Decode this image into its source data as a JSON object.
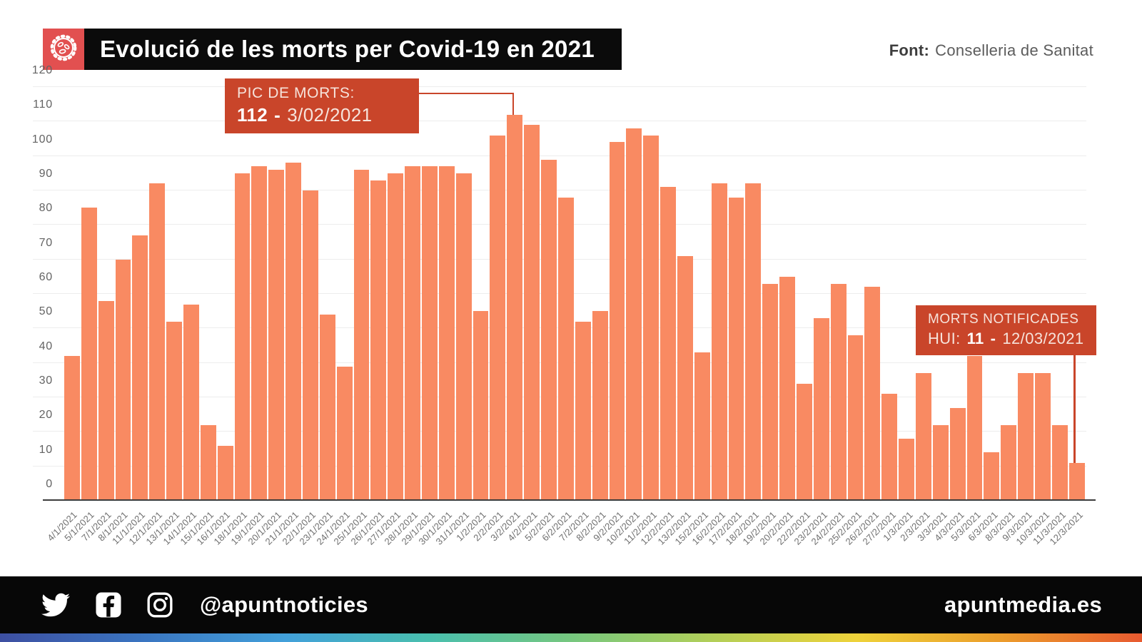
{
  "header": {
    "title": "Evolució de les morts per Covid-19 en 2021",
    "source_label": "Font:",
    "source_value": "Conselleria de Sanitat",
    "icon": "virus-icon"
  },
  "chart_data": {
    "type": "bar",
    "title": "Evolució de les morts per Covid-19 en 2021",
    "xlabel": "",
    "ylabel": "",
    "ylim": [
      0,
      120
    ],
    "y_ticks": [
      0,
      10,
      20,
      30,
      40,
      50,
      60,
      70,
      80,
      90,
      100,
      110,
      120
    ],
    "grid": true,
    "x": [
      "4/1/2021",
      "5/1/2021",
      "7/1/2021",
      "8/1/2021",
      "11/1/2021",
      "12/1/2021",
      "13/1/2021",
      "14/1/2021",
      "15/1/2021",
      "16/1/2021",
      "18/1/2021",
      "19/1/2021",
      "20/1/2021",
      "21/1/2021",
      "22/1/2021",
      "23/1/2021",
      "24/1/2021",
      "25/1/2021",
      "26/1/2021",
      "27/1/2021",
      "28/1/2021",
      "29/1/2021",
      "30/1/2021",
      "31/1/2021",
      "1/2/2021",
      "2/2/2021",
      "3/2/2021",
      "4/2/2021",
      "5/2/2021",
      "6/2/2021",
      "7/2/2021",
      "8/2/2021",
      "9/2/2021",
      "10/2/2021",
      "11/2/2021",
      "12/2/2021",
      "13/2/2021",
      "15/2/2021",
      "16/2/2021",
      "17/2/2021",
      "18/2/2021",
      "19/2/2021",
      "20/2/2021",
      "22/2/2021",
      "23/2/2021",
      "24/2/2021",
      "25/2/2021",
      "26/2/2021",
      "27/2/2021",
      "1/3/2021",
      "2/3/2021",
      "3/3/2021",
      "4/3/2021",
      "5/3/2021",
      "6/3/2021",
      "8/3/2021",
      "9/3/2021",
      "10/3/2021",
      "11/3/2021",
      "12/3/2021"
    ],
    "values": [
      42,
      85,
      58,
      70,
      77,
      92,
      52,
      57,
      22,
      16,
      95,
      97,
      96,
      98,
      90,
      54,
      39,
      96,
      93,
      95,
      97,
      97,
      97,
      95,
      55,
      106,
      112,
      109,
      99,
      88,
      52,
      55,
      104,
      108,
      106,
      91,
      71,
      43,
      92,
      88,
      92,
      63,
      65,
      34,
      53,
      63,
      48,
      62,
      31,
      18,
      37,
      22,
      27,
      42,
      14,
      22,
      37,
      37,
      22,
      11
    ]
  },
  "annotations": {
    "peak": {
      "line1": "PIC DE MORTS:",
      "value": "112",
      "dash": "-",
      "date": "3/02/2021",
      "target_index": 26
    },
    "today": {
      "line1": "MORTS NOTIFICADES",
      "prefix": "HUI:",
      "value": "11",
      "dash": "-",
      "date": "12/03/2021",
      "target_index": 59
    }
  },
  "footer": {
    "social_icons": [
      "twitter-icon",
      "facebook-icon",
      "instagram-icon"
    ],
    "handle": "@apuntnoticies",
    "website": "apuntmedia.es"
  },
  "colors": {
    "bar": "#f98a62",
    "accent": "#c9452a",
    "icon_bg": "#e25050",
    "header_bg": "#0b0b0b",
    "footer_bg": "#070707",
    "gridline": "#ededed",
    "axis_line": "#3c3c3c",
    "rainbow_stops": [
      "#3d4fa1",
      "#3a75c1",
      "#42a0da",
      "#49bfae",
      "#76c77f",
      "#b3cf58",
      "#eed23a",
      "#ec9d2c",
      "#e85a30"
    ]
  }
}
